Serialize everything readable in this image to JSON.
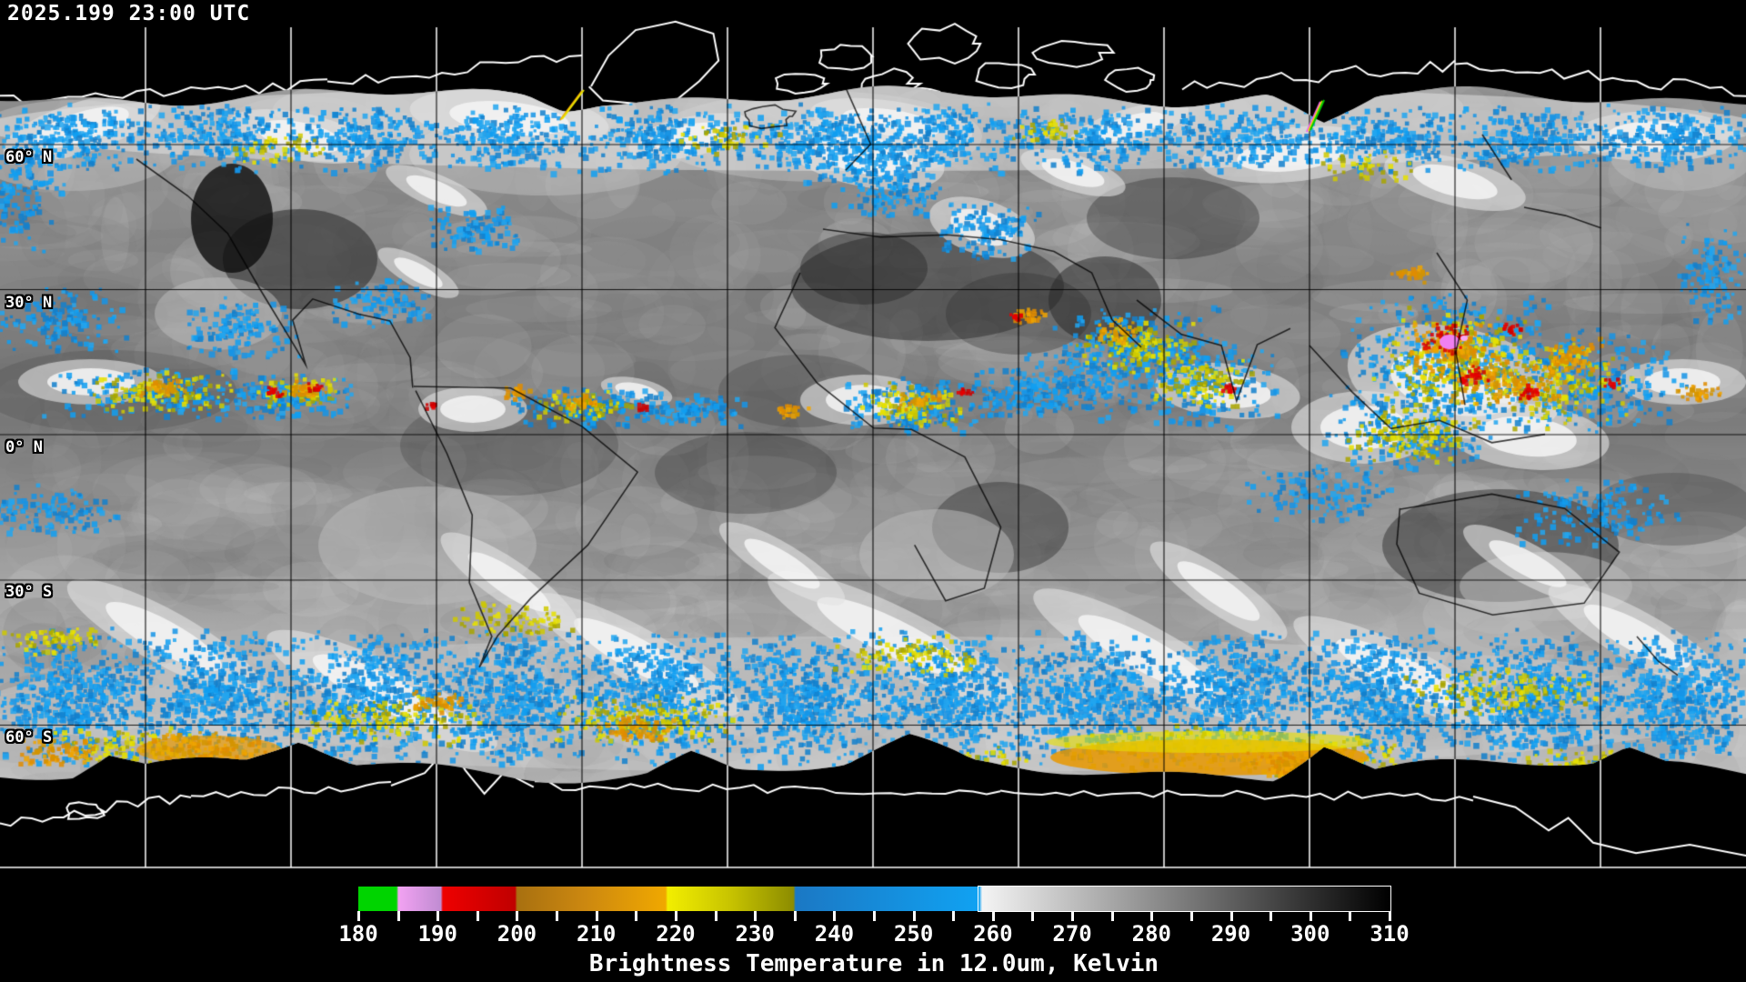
{
  "header": {
    "timestamp": "2025.199 23:00 UTC"
  },
  "map": {
    "projection": "equirectangular",
    "grid_interval_deg": 30,
    "latitude_labels": [
      {
        "lat": 60,
        "label": "60° N"
      },
      {
        "lat": 30,
        "label": "30° N"
      },
      {
        "lat": 0,
        "label": "0° N"
      },
      {
        "lat": -30,
        "label": "30° S"
      },
      {
        "lat": -60,
        "label": "60° S"
      }
    ]
  },
  "colorbar": {
    "caption": "Brightness Temperature in 12.0um, Kelvin",
    "min": 180,
    "max": 310,
    "tick_step": 5,
    "label_step": 10,
    "labels": [
      "180",
      "190",
      "200",
      "210",
      "220",
      "230",
      "240",
      "250",
      "260",
      "270",
      "280",
      "290",
      "300",
      "310"
    ],
    "stops": [
      {
        "p": 0.0,
        "c": "#00d400"
      },
      {
        "p": 3.7,
        "c": "#00d400"
      },
      {
        "p": 3.9,
        "c": "#f2a2f2"
      },
      {
        "p": 8.0,
        "c": "#c08cd2"
      },
      {
        "p": 8.2,
        "c": "#ee0000"
      },
      {
        "p": 15.2,
        "c": "#c00000"
      },
      {
        "p": 15.4,
        "c": "#a87010"
      },
      {
        "p": 22.0,
        "c": "#cc8810"
      },
      {
        "p": 29.8,
        "c": "#f0a800"
      },
      {
        "p": 30.0,
        "c": "#f2ee00"
      },
      {
        "p": 36.0,
        "c": "#c8c400"
      },
      {
        "p": 42.2,
        "c": "#8c8c00"
      },
      {
        "p": 42.4,
        "c": "#1b78c4"
      },
      {
        "p": 60.2,
        "c": "#10a2f2"
      },
      {
        "p": 60.5,
        "c": "#f4f4f4"
      },
      {
        "p": 100.0,
        "c": "#000000"
      }
    ]
  },
  "colors": {
    "background": "#000000",
    "text": "#ffffff",
    "grid_in_data": "#000000",
    "grid_in_void": "#ffffff",
    "coast_in_data": "#000000",
    "coast_in_void": "#ffffff"
  }
}
